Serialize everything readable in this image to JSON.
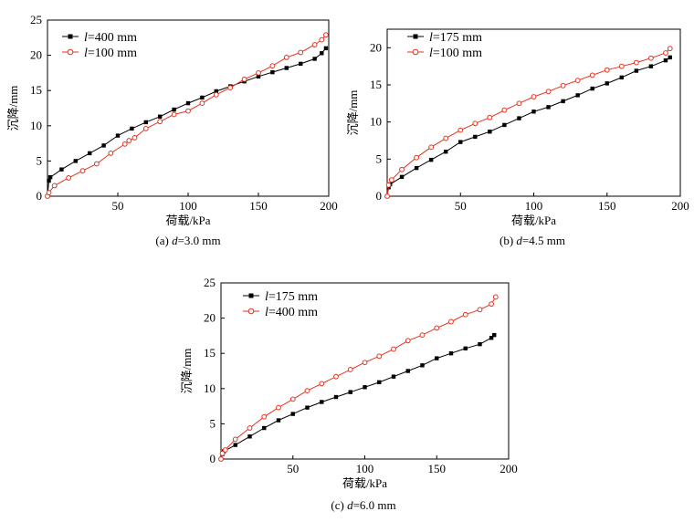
{
  "colors": {
    "black_series": "#000000",
    "red_series": "#e8321e",
    "axis": "#000000"
  },
  "chart_data": [
    {
      "type": "line",
      "caption": {
        "prefix": "(a) ",
        "var": "d",
        "suffix": "=3.0 mm"
      },
      "xlabel": "荷载/kPa",
      "ylabel": "沉降/mm",
      "xlim": [
        0,
        200
      ],
      "ylim": [
        0,
        25
      ],
      "xticks": [
        50,
        100,
        150,
        200
      ],
      "xtick_labels": [
        "50",
        "100",
        "150",
        "200"
      ],
      "yticks": [
        0,
        5,
        10,
        15,
        20,
        25
      ],
      "ytick_labels": [
        "0",
        "5",
        "10",
        "15",
        "20",
        "25"
      ],
      "legend_position": "top-left",
      "series": [
        {
          "name": "400 mm",
          "legend_var": "l",
          "legend_eq": "=",
          "color": "#000000",
          "marker": "square",
          "x": [
            0,
            1,
            2,
            10,
            20,
            30,
            40,
            50,
            60,
            70,
            80,
            90,
            100,
            110,
            120,
            130,
            140,
            150,
            160,
            170,
            180,
            190,
            195,
            198
          ],
          "y": [
            0,
            2.2,
            2.7,
            3.8,
            5.0,
            6.1,
            7.2,
            8.6,
            9.6,
            10.5,
            11.3,
            12.3,
            13.2,
            14.0,
            14.9,
            15.6,
            16.3,
            17.0,
            17.6,
            18.2,
            18.8,
            19.5,
            20.3,
            21.0
          ]
        },
        {
          "name": "100 mm",
          "legend_var": "l",
          "legend_eq": "=",
          "color": "#e8321e",
          "marker": "circle",
          "x": [
            0,
            1,
            5,
            15,
            25,
            35,
            45,
            55,
            58,
            62,
            70,
            80,
            90,
            100,
            110,
            120,
            130,
            140,
            150,
            160,
            170,
            180,
            190,
            195,
            198
          ],
          "y": [
            0,
            0.5,
            1.5,
            2.6,
            3.6,
            4.6,
            6.1,
            7.4,
            7.9,
            8.3,
            9.6,
            10.6,
            11.6,
            12.1,
            13.2,
            14.4,
            15.4,
            16.6,
            17.5,
            18.5,
            19.7,
            20.4,
            21.5,
            22.2,
            22.9
          ]
        }
      ]
    },
    {
      "type": "line",
      "caption": {
        "prefix": "(b) ",
        "var": "d",
        "suffix": "=4.5 mm"
      },
      "xlabel": "荷载/kPa",
      "ylabel": "沉降/mm",
      "xlim": [
        0,
        200
      ],
      "ylim": [
        0,
        22.5
      ],
      "xticks": [
        50,
        100,
        150,
        200
      ],
      "xtick_labels": [
        "50",
        "100",
        "150",
        "200"
      ],
      "yticks": [
        0,
        5,
        10,
        15,
        20
      ],
      "ytick_labels": [
        "0",
        "5",
        "10",
        "15",
        "20"
      ],
      "legend_position": "top-left",
      "series": [
        {
          "name": "175 mm",
          "legend_var": "l",
          "legend_eq": "=",
          "color": "#000000",
          "marker": "square",
          "x": [
            0,
            1,
            2,
            10,
            20,
            30,
            40,
            50,
            60,
            70,
            80,
            90,
            100,
            110,
            120,
            130,
            140,
            150,
            160,
            170,
            180,
            190,
            193
          ],
          "y": [
            0,
            1.2,
            1.6,
            2.6,
            3.8,
            4.9,
            6.0,
            7.3,
            8.0,
            8.7,
            9.6,
            10.5,
            11.4,
            12.0,
            12.8,
            13.6,
            14.5,
            15.2,
            16.0,
            16.9,
            17.5,
            18.3,
            18.7
          ]
        },
        {
          "name": "100 mm",
          "legend_var": "l",
          "legend_eq": "=",
          "color": "#e8321e",
          "marker": "circle",
          "x": [
            0,
            1,
            3,
            10,
            20,
            30,
            40,
            50,
            60,
            70,
            80,
            90,
            100,
            110,
            120,
            130,
            140,
            150,
            160,
            170,
            180,
            190,
            193
          ],
          "y": [
            0,
            1.5,
            2.2,
            3.6,
            5.2,
            6.6,
            7.8,
            8.9,
            9.8,
            10.6,
            11.6,
            12.5,
            13.4,
            14.1,
            14.9,
            15.6,
            16.3,
            17.0,
            17.5,
            18.0,
            18.6,
            19.3,
            19.9
          ]
        }
      ]
    },
    {
      "type": "line",
      "caption": {
        "prefix": "(c) ",
        "var": "d",
        "suffix": "=6.0 mm"
      },
      "xlabel": "荷载/kPa",
      "ylabel": "沉降/mm",
      "xlim": [
        0,
        200
      ],
      "ylim": [
        0,
        25
      ],
      "xticks": [
        50,
        100,
        150,
        200
      ],
      "xtick_labels": [
        "50",
        "100",
        "150",
        "200"
      ],
      "yticks": [
        0,
        5,
        10,
        15,
        20,
        25
      ],
      "ytick_labels": [
        "0",
        "5",
        "10",
        "15",
        "20",
        "25"
      ],
      "legend_position": "top-left",
      "series": [
        {
          "name": "175 mm",
          "legend_var": "l",
          "legend_eq": "=",
          "color": "#000000",
          "marker": "square",
          "x": [
            0,
            1,
            2,
            10,
            20,
            30,
            40,
            50,
            60,
            70,
            80,
            90,
            100,
            110,
            120,
            130,
            140,
            150,
            160,
            170,
            180,
            188,
            190
          ],
          "y": [
            0,
            0.7,
            1.1,
            2.0,
            3.2,
            4.4,
            5.5,
            6.4,
            7.3,
            8.1,
            8.8,
            9.5,
            10.2,
            10.9,
            11.7,
            12.5,
            13.3,
            14.3,
            15.0,
            15.7,
            16.3,
            17.2,
            17.6
          ]
        },
        {
          "name": "400 mm",
          "legend_var": "l",
          "legend_eq": "=",
          "color": "#e8321e",
          "marker": "circle",
          "x": [
            0,
            1,
            3,
            10,
            20,
            30,
            40,
            50,
            60,
            70,
            80,
            90,
            100,
            110,
            120,
            130,
            140,
            150,
            160,
            170,
            180,
            188,
            191
          ],
          "y": [
            0,
            0.8,
            1.3,
            2.8,
            4.4,
            6.0,
            7.3,
            8.5,
            9.7,
            10.7,
            11.7,
            12.7,
            13.7,
            14.6,
            15.6,
            16.8,
            17.6,
            18.6,
            19.5,
            20.5,
            21.2,
            22.0,
            23.0
          ]
        }
      ]
    }
  ]
}
